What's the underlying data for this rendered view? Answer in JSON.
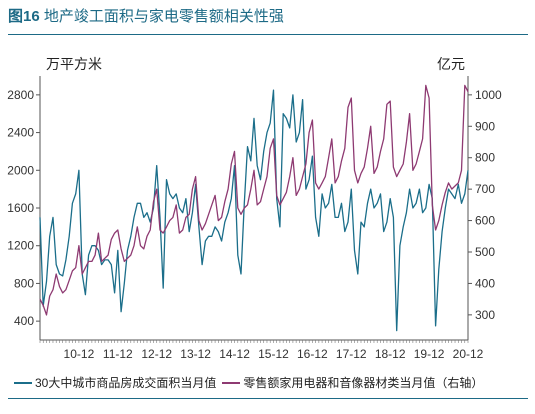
{
  "header": {
    "figure_number": "图16",
    "title": "地产竣工面积与家电零售额相关性强"
  },
  "chart_data": {
    "type": "line",
    "left_unit": "万平方米",
    "right_unit": "亿元",
    "left_axis": {
      "min": 200,
      "max": 3000,
      "ticks": [
        400,
        800,
        1200,
        1600,
        2000,
        2400,
        2800
      ]
    },
    "right_axis": {
      "min": 220,
      "max": 1060,
      "ticks": [
        300,
        400,
        500,
        600,
        700,
        800,
        900,
        1000
      ]
    },
    "x_range": [
      "2009-12",
      "2020-12"
    ],
    "x_ticks": [
      "10-12",
      "11-12",
      "12-12",
      "13-12",
      "14-12",
      "15-12",
      "16-12",
      "17-12",
      "18-12",
      "19-12",
      "20-12"
    ],
    "series": [
      {
        "name": "30大中城市商品房成交面积当月值",
        "axis": "left",
        "color": "#1b6e8a",
        "points": [
          [
            "2009-12",
            1500
          ],
          [
            "2010-01",
            560
          ],
          [
            "2010-02",
            820
          ],
          [
            "2010-03",
            1300
          ],
          [
            "2010-04",
            1500
          ],
          [
            "2010-05",
            1000
          ],
          [
            "2010-06",
            900
          ],
          [
            "2010-07",
            880
          ],
          [
            "2010-08",
            1050
          ],
          [
            "2010-09",
            1300
          ],
          [
            "2010-10",
            1650
          ],
          [
            "2010-11",
            1750
          ],
          [
            "2010-12",
            2000
          ],
          [
            "2011-01",
            900
          ],
          [
            "2011-02",
            680
          ],
          [
            "2011-03",
            1100
          ],
          [
            "2011-04",
            1200
          ],
          [
            "2011-05",
            1200
          ],
          [
            "2011-06",
            1150
          ],
          [
            "2011-07",
            1000
          ],
          [
            "2011-08",
            1050
          ],
          [
            "2011-09",
            1050
          ],
          [
            "2011-10",
            1000
          ],
          [
            "2011-11",
            700
          ],
          [
            "2011-12",
            1150
          ],
          [
            "2012-01",
            500
          ],
          [
            "2012-02",
            800
          ],
          [
            "2012-03",
            1150
          ],
          [
            "2012-04",
            1300
          ],
          [
            "2012-05",
            1500
          ],
          [
            "2012-06",
            1650
          ],
          [
            "2012-07",
            1650
          ],
          [
            "2012-08",
            1500
          ],
          [
            "2012-09",
            1550
          ],
          [
            "2012-10",
            1450
          ],
          [
            "2012-11",
            1600
          ],
          [
            "2012-12",
            2050
          ],
          [
            "2013-01",
            1500
          ],
          [
            "2013-02",
            750
          ],
          [
            "2013-03",
            1900
          ],
          [
            "2013-04",
            1750
          ],
          [
            "2013-05",
            1700
          ],
          [
            "2013-06",
            1750
          ],
          [
            "2013-07",
            1600
          ],
          [
            "2013-08",
            1550
          ],
          [
            "2013-09",
            1700
          ],
          [
            "2013-10",
            1350
          ],
          [
            "2013-11",
            1550
          ],
          [
            "2013-12",
            1850
          ],
          [
            "2014-01",
            1400
          ],
          [
            "2014-02",
            1000
          ],
          [
            "2014-03",
            1250
          ],
          [
            "2014-04",
            1300
          ],
          [
            "2014-05",
            1300
          ],
          [
            "2014-06",
            1400
          ],
          [
            "2014-07",
            1350
          ],
          [
            "2014-08",
            1250
          ],
          [
            "2014-09",
            1450
          ],
          [
            "2014-10",
            1550
          ],
          [
            "2014-11",
            1700
          ],
          [
            "2014-12",
            2050
          ],
          [
            "2015-01",
            1100
          ],
          [
            "2015-02",
            900
          ],
          [
            "2015-03",
            1650
          ],
          [
            "2015-04",
            2250
          ],
          [
            "2015-05",
            2100
          ],
          [
            "2015-06",
            2550
          ],
          [
            "2015-07",
            2050
          ],
          [
            "2015-08",
            1900
          ],
          [
            "2015-09",
            2200
          ],
          [
            "2015-10",
            2400
          ],
          [
            "2015-11",
            2500
          ],
          [
            "2015-12",
            2850
          ],
          [
            "2016-01",
            1700
          ],
          [
            "2016-02",
            1400
          ],
          [
            "2016-03",
            2600
          ],
          [
            "2016-04",
            2550
          ],
          [
            "2016-05",
            2450
          ],
          [
            "2016-06",
            2800
          ],
          [
            "2016-07",
            2300
          ],
          [
            "2016-08",
            2400
          ],
          [
            "2016-09",
            2750
          ],
          [
            "2016-10",
            1800
          ],
          [
            "2016-11",
            1900
          ],
          [
            "2016-12",
            2150
          ],
          [
            "2017-01",
            1500
          ],
          [
            "2017-02",
            1300
          ],
          [
            "2017-03",
            1750
          ],
          [
            "2017-04",
            1600
          ],
          [
            "2017-05",
            1650
          ],
          [
            "2017-06",
            1850
          ],
          [
            "2017-07",
            1500
          ],
          [
            "2017-08",
            1500
          ],
          [
            "2017-09",
            1650
          ],
          [
            "2017-10",
            1350
          ],
          [
            "2017-11",
            1450
          ],
          [
            "2017-12",
            1800
          ],
          [
            "2018-01",
            1150
          ],
          [
            "2018-02",
            900
          ],
          [
            "2018-03",
            1450
          ],
          [
            "2018-04",
            1400
          ],
          [
            "2018-05",
            1650
          ],
          [
            "2018-06",
            1800
          ],
          [
            "2018-07",
            1600
          ],
          [
            "2018-08",
            1650
          ],
          [
            "2018-09",
            1750
          ],
          [
            "2018-10",
            1350
          ],
          [
            "2018-11",
            1450
          ],
          [
            "2018-12",
            1700
          ],
          [
            "2019-01",
            1500
          ],
          [
            "2019-02",
            300
          ],
          [
            "2019-03",
            1200
          ],
          [
            "2019-04",
            1400
          ],
          [
            "2019-05",
            1550
          ],
          [
            "2019-06",
            1800
          ],
          [
            "2019-07",
            1600
          ],
          [
            "2019-08",
            1650
          ],
          [
            "2019-09",
            1800
          ],
          [
            "2019-10",
            1550
          ],
          [
            "2019-11",
            1600
          ],
          [
            "2019-12",
            1850
          ],
          [
            "2020-01",
            1700
          ],
          [
            "2020-02",
            350
          ],
          [
            "2020-03",
            950
          ],
          [
            "2020-04",
            1350
          ],
          [
            "2020-05",
            1600
          ],
          [
            "2020-06",
            1800
          ],
          [
            "2020-07",
            1750
          ],
          [
            "2020-08",
            1700
          ],
          [
            "2020-09",
            1850
          ],
          [
            "2020-10",
            1650
          ],
          [
            "2020-11",
            1750
          ],
          [
            "2020-12",
            2000
          ]
        ]
      },
      {
        "name": "零售额家用电器和音像器材类当月值（右轴）",
        "axis": "right",
        "color": "#8e3a72",
        "points": [
          [
            "2009-12",
            350
          ],
          [
            "2010-01",
            330
          ],
          [
            "2010-02",
            300
          ],
          [
            "2010-03",
            360
          ],
          [
            "2010-04",
            380
          ],
          [
            "2010-05",
            430
          ],
          [
            "2010-06",
            390
          ],
          [
            "2010-07",
            370
          ],
          [
            "2010-08",
            380
          ],
          [
            "2010-09",
            410
          ],
          [
            "2010-10",
            440
          ],
          [
            "2010-11",
            450
          ],
          [
            "2010-12",
            520
          ],
          [
            "2011-01",
            430
          ],
          [
            "2011-02",
            450
          ],
          [
            "2011-03",
            470
          ],
          [
            "2011-04",
            470
          ],
          [
            "2011-05",
            490
          ],
          [
            "2011-06",
            560
          ],
          [
            "2011-07",
            470
          ],
          [
            "2011-08",
            480
          ],
          [
            "2011-09",
            490
          ],
          [
            "2011-10",
            540
          ],
          [
            "2011-11",
            560
          ],
          [
            "2011-12",
            570
          ],
          [
            "2012-01",
            510
          ],
          [
            "2012-02",
            470
          ],
          [
            "2012-03",
            480
          ],
          [
            "2012-04",
            490
          ],
          [
            "2012-05",
            520
          ],
          [
            "2012-06",
            580
          ],
          [
            "2012-07",
            520
          ],
          [
            "2012-08",
            510
          ],
          [
            "2012-09",
            550
          ],
          [
            "2012-10",
            570
          ],
          [
            "2012-11",
            660
          ],
          [
            "2012-12",
            700
          ],
          [
            "2013-01",
            570
          ],
          [
            "2013-02",
            560
          ],
          [
            "2013-03",
            580
          ],
          [
            "2013-04",
            600
          ],
          [
            "2013-05",
            610
          ],
          [
            "2013-06",
            650
          ],
          [
            "2013-07",
            560
          ],
          [
            "2013-08",
            570
          ],
          [
            "2013-09",
            610
          ],
          [
            "2013-10",
            620
          ],
          [
            "2013-11",
            700
          ],
          [
            "2013-12",
            740
          ],
          [
            "2014-01",
            600
          ],
          [
            "2014-02",
            570
          ],
          [
            "2014-03",
            590
          ],
          [
            "2014-04",
            620
          ],
          [
            "2014-05",
            650
          ],
          [
            "2014-06",
            680
          ],
          [
            "2014-07",
            600
          ],
          [
            "2014-08",
            610
          ],
          [
            "2014-09",
            660
          ],
          [
            "2014-10",
            700
          ],
          [
            "2014-11",
            780
          ],
          [
            "2014-12",
            820
          ],
          [
            "2015-01",
            640
          ],
          [
            "2015-02",
            620
          ],
          [
            "2015-03",
            640
          ],
          [
            "2015-04",
            650
          ],
          [
            "2015-05",
            700
          ],
          [
            "2015-06",
            760
          ],
          [
            "2015-07",
            650
          ],
          [
            "2015-08",
            660
          ],
          [
            "2015-09",
            700
          ],
          [
            "2015-10",
            740
          ],
          [
            "2015-11",
            830
          ],
          [
            "2015-12",
            860
          ],
          [
            "2016-01",
            680
          ],
          [
            "2016-02",
            650
          ],
          [
            "2016-03",
            670
          ],
          [
            "2016-04",
            690
          ],
          [
            "2016-05",
            740
          ],
          [
            "2016-06",
            800
          ],
          [
            "2016-07",
            680
          ],
          [
            "2016-08",
            700
          ],
          [
            "2016-09",
            740
          ],
          [
            "2016-10",
            780
          ],
          [
            "2016-11",
            880
          ],
          [
            "2016-12",
            920
          ],
          [
            "2017-01",
            720
          ],
          [
            "2017-02",
            700
          ],
          [
            "2017-03",
            720
          ],
          [
            "2017-04",
            740
          ],
          [
            "2017-05",
            800
          ],
          [
            "2017-06",
            860
          ],
          [
            "2017-07",
            720
          ],
          [
            "2017-08",
            740
          ],
          [
            "2017-09",
            790
          ],
          [
            "2017-10",
            830
          ],
          [
            "2017-11",
            960
          ],
          [
            "2017-12",
            990
          ],
          [
            "2018-01",
            760
          ],
          [
            "2018-02",
            720
          ],
          [
            "2018-03",
            750
          ],
          [
            "2018-04",
            770
          ],
          [
            "2018-05",
            830
          ],
          [
            "2018-06",
            900
          ],
          [
            "2018-07",
            750
          ],
          [
            "2018-08",
            770
          ],
          [
            "2018-09",
            820
          ],
          [
            "2018-10",
            860
          ],
          [
            "2018-11",
            970
          ],
          [
            "2018-12",
            980
          ],
          [
            "2019-01",
            770
          ],
          [
            "2019-02",
            740
          ],
          [
            "2019-03",
            760
          ],
          [
            "2019-04",
            780
          ],
          [
            "2019-05",
            850
          ],
          [
            "2019-06",
            940
          ],
          [
            "2019-07",
            760
          ],
          [
            "2019-08",
            780
          ],
          [
            "2019-09",
            820
          ],
          [
            "2019-10",
            860
          ],
          [
            "2019-11",
            1030
          ],
          [
            "2019-12",
            990
          ],
          [
            "2020-01",
            650
          ],
          [
            "2020-02",
            570
          ],
          [
            "2020-03",
            600
          ],
          [
            "2020-04",
            650
          ],
          [
            "2020-05",
            690
          ],
          [
            "2020-06",
            720
          ],
          [
            "2020-07",
            700
          ],
          [
            "2020-08",
            710
          ],
          [
            "2020-09",
            720
          ],
          [
            "2020-10",
            760
          ],
          [
            "2020-11",
            1030
          ],
          [
            "2020-12",
            1010
          ]
        ]
      }
    ]
  }
}
